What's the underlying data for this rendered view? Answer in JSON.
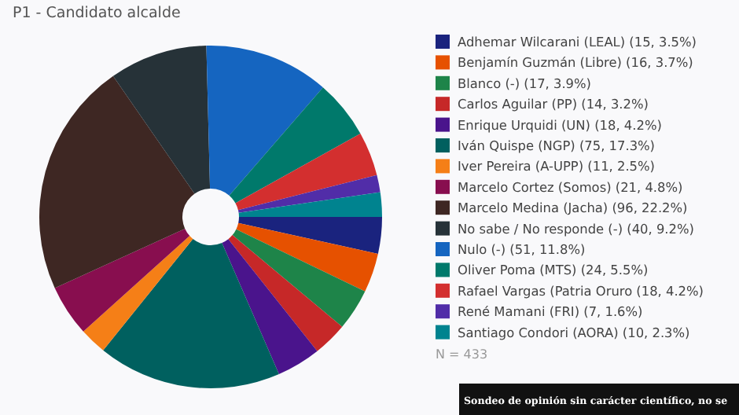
{
  "chart_data": {
    "type": "donut",
    "title": "P1 - Candidato alcalde",
    "categories": [
      "Adhemar Wilcarani (LEAL)",
      "Benjamín Guzmán (Libre)",
      "Blanco (-)",
      "Carlos Aguilar (PP)",
      "Enrique Urquidi (UN)",
      "Iván Quispe (NGP)",
      "Iver Pereira (A-UPP)",
      "Marcelo Cortez (Somos)",
      "Marcelo Medina (Jacha)",
      "No sabe / No responde (-)",
      "Nulo (-)",
      "Oliver Poma (MTS)",
      "Rafael Vargas (Patria Oruro",
      "René Mamani (FRI)",
      "Santiago Condori (AORA)"
    ],
    "values": [
      15,
      16,
      17,
      14,
      18,
      75,
      11,
      21,
      96,
      40,
      51,
      24,
      18,
      7,
      10
    ],
    "value_labels": [
      "(15, 3.5%)",
      "(16, 3.7%)",
      "(17, 3.9%)",
      "(14, 3.2%)",
      "(18, 4.2%)",
      "(75, 17.3%)",
      "(11, 2.5%)",
      "(21, 4.8%)",
      "(96, 22.2%)",
      "(40, 9.2%)",
      "(51, 11.8%)",
      "(24, 5.5%)",
      "(18, 4.2%)",
      "(7, 1.6%)",
      "(10, 2.3%)"
    ],
    "colors": [
      "#1a237e",
      "#e65100",
      "#1e8449",
      "#c62828",
      "#4a148c",
      "#00605f",
      "#f57f17",
      "#880e4f",
      "#3e2723",
      "#263238",
      "#1565c0",
      "#00796b",
      "#d32f2f",
      "#512da8",
      "#00838f"
    ],
    "legend": "right",
    "annotations": [
      "N = 433",
      "Sondeo de opinión sin carácter científico, no se"
    ]
  }
}
